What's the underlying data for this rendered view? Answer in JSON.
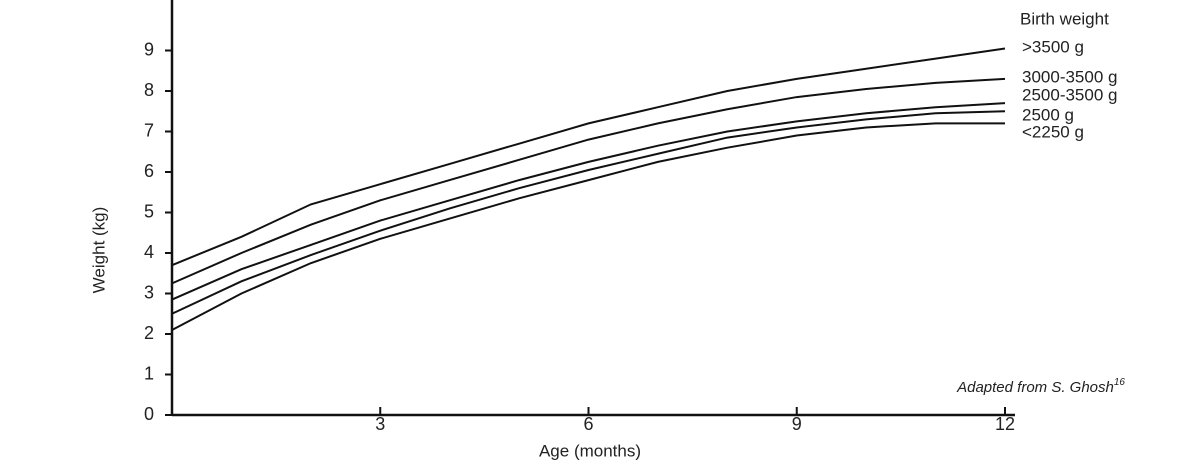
{
  "chart_data": {
    "type": "line",
    "x_label": "Age (months)",
    "y_label": "Weight (kg)",
    "legend_title": "Birth weight",
    "annotation": "Adapted from S. Ghosh",
    "annotation_ref": "16",
    "x": [
      0,
      1,
      2,
      3,
      4,
      5,
      6,
      7,
      8,
      9,
      10,
      11,
      12
    ],
    "series": [
      {
        "name": ">3500 g",
        "color": "#111111",
        "values": [
          3.7,
          4.4,
          5.2,
          5.7,
          6.2,
          6.7,
          7.2,
          7.6,
          8.0,
          8.3,
          8.55,
          8.8,
          9.05
        ]
      },
      {
        "name": "3000-3500 g",
        "color": "#111111",
        "values": [
          3.25,
          4.0,
          4.7,
          5.3,
          5.8,
          6.3,
          6.8,
          7.2,
          7.55,
          7.85,
          8.05,
          8.2,
          8.3
        ]
      },
      {
        "name": "2500-3500 g",
        "color": "#111111",
        "values": [
          2.85,
          3.6,
          4.2,
          4.8,
          5.3,
          5.8,
          6.25,
          6.65,
          7.0,
          7.25,
          7.45,
          7.6,
          7.7
        ]
      },
      {
        "name": "2500 g",
        "color": "#111111",
        "values": [
          2.5,
          3.3,
          3.95,
          4.55,
          5.1,
          5.6,
          6.05,
          6.45,
          6.85,
          7.1,
          7.3,
          7.45,
          7.5
        ]
      },
      {
        "name": "<2250 g",
        "color": "#111111",
        "values": [
          2.1,
          3.0,
          3.75,
          4.35,
          4.85,
          5.35,
          5.8,
          6.25,
          6.6,
          6.9,
          7.1,
          7.2,
          7.2
        ]
      }
    ],
    "xlim": [
      0,
      12
    ],
    "xticks": [
      3,
      6,
      9,
      12
    ],
    "ylim": [
      0,
      10
    ],
    "yticks": [
      0,
      1,
      2,
      3,
      4,
      5,
      6,
      7,
      8,
      9
    ],
    "grid": false
  }
}
